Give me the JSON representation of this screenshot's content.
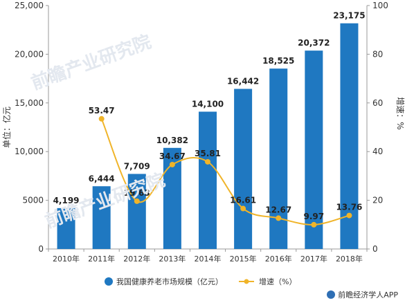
{
  "chart_data": {
    "type": "bar",
    "categories": [
      "2010年",
      "2011年",
      "2012年",
      "2013年",
      "2014年",
      "2015年",
      "2016年",
      "2017年",
      "2018年"
    ],
    "series": [
      {
        "name": "我国健康养老市场规模（亿元）",
        "type": "bar",
        "axis": "left",
        "values": [
          4199,
          6444,
          7709,
          10382,
          14100,
          16442,
          18525,
          20372,
          23175
        ],
        "labels": [
          "4,199",
          "6,444",
          "7,709",
          "10,382",
          "14,100",
          "16,442",
          "18,525",
          "20,372",
          "23,175"
        ]
      },
      {
        "name": "增速（%）",
        "type": "line",
        "axis": "right",
        "values": [
          null,
          53.47,
          19.63,
          34.67,
          35.81,
          16.61,
          12.67,
          9.97,
          13.76
        ],
        "labels": [
          "",
          "53.47",
          "19.63",
          "34.67",
          "35.81",
          "16.61",
          "12.67",
          "9.97",
          "13.76"
        ]
      }
    ],
    "ylabel_left": "单位：亿元",
    "ylabel_right": "增速：%",
    "ylim_left": [
      0,
      25000
    ],
    "ylim_right": [
      0,
      100
    ],
    "yticks_left": [
      "0",
      "5000",
      "10,000",
      "15,000",
      "20,000",
      "25,000"
    ],
    "yticks_right": [
      "0",
      "20",
      "40",
      "60",
      "80",
      "100"
    ],
    "legend_position": "bottom",
    "colors": {
      "bar": "#1f78c1",
      "line": "#f0b429",
      "axis": "#999999",
      "text": "#333333"
    }
  },
  "footer": {
    "text": "前瞻经济学人APP"
  },
  "watermark": {
    "text": "前瞻产业研究院"
  }
}
